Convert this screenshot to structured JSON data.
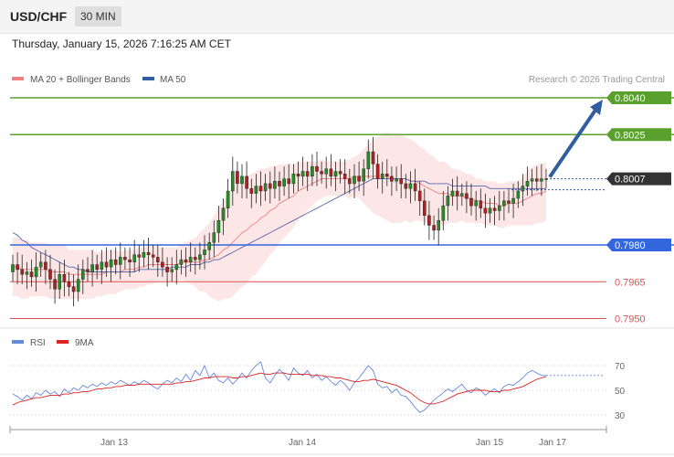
{
  "header": {
    "symbol": "USD/CHF",
    "timeframe": "30 MIN"
  },
  "datetime": "Thursday, January 15, 2026 7:16:25 AM CET",
  "legend": {
    "bollinger": "MA 20 + Bollinger Bands",
    "ma50": "MA 50",
    "watermark": "Research © 2026 Trading Central"
  },
  "rsi_legend": {
    "rsi": "RSI",
    "ma9": "9MA"
  },
  "colors": {
    "resistance": "#5aa02c",
    "support_blue": "#3366dd",
    "support_red": "#e05050",
    "current": "#333333",
    "arrow": "#2f5d9e",
    "ma50": "#5566aa",
    "bollinger": "#f08080",
    "rsi": "#6688dd",
    "rsi_ma": "#dd2222"
  },
  "chart_data": [
    {
      "type": "candlestick",
      "instrument": "USD/CHF",
      "interval": "30 MIN",
      "ylim": [
        0.7942,
        0.8055
      ],
      "x_labels": [
        "Jan 13",
        "Jan 14",
        "Jan 15",
        "Jan 17"
      ],
      "levels": [
        {
          "value": 0.804,
          "label": "0.8040",
          "kind": "resistance"
        },
        {
          "value": 0.8025,
          "label": "0.8025",
          "kind": "resistance"
        },
        {
          "value": 0.8007,
          "label": "0.8007",
          "kind": "current"
        },
        {
          "value": 0.798,
          "label": "0.7980",
          "kind": "support"
        },
        {
          "value": 0.7965,
          "label": "0.7965",
          "kind": "support-minor"
        },
        {
          "value": 0.795,
          "label": "0.7950",
          "kind": "support-minor"
        }
      ],
      "projection": {
        "from": 0.8007,
        "to": 0.804
      },
      "close_series": [
        0.7972,
        0.797,
        0.7968,
        0.7969,
        0.7967,
        0.7971,
        0.7973,
        0.797,
        0.7966,
        0.7962,
        0.7968,
        0.7965,
        0.7963,
        0.7961,
        0.7966,
        0.797,
        0.7969,
        0.7972,
        0.797,
        0.7973,
        0.7971,
        0.7974,
        0.7972,
        0.7975,
        0.7974,
        0.7973,
        0.7976,
        0.7975,
        0.7977,
        0.7976,
        0.7975,
        0.7973,
        0.7971,
        0.7969,
        0.797,
        0.7972,
        0.7974,
        0.7973,
        0.7975,
        0.7974,
        0.7976,
        0.7978,
        0.7981,
        0.7985,
        0.799,
        0.7995,
        0.8002,
        0.801,
        0.8005,
        0.8008,
        0.8003,
        0.8001,
        0.8004,
        0.8002,
        0.8005,
        0.8003,
        0.8006,
        0.8004,
        0.8007,
        0.8005,
        0.8009,
        0.8008,
        0.801,
        0.8008,
        0.8012,
        0.801,
        0.8009,
        0.8011,
        0.8008,
        0.801,
        0.8009,
        0.8007,
        0.8005,
        0.8008,
        0.8006,
        0.8011,
        0.8018,
        0.8013,
        0.8007,
        0.8009,
        0.8008,
        0.8006,
        0.8007,
        0.8005,
        0.8003,
        0.8005,
        0.8002,
        0.7998,
        0.7992,
        0.7988,
        0.7986,
        0.799,
        0.7996,
        0.8,
        0.8002,
        0.8,
        0.8001,
        0.7999,
        0.7996,
        0.7998,
        0.7995,
        0.7993,
        0.7995,
        0.7994,
        0.7996,
        0.7998,
        0.7997,
        0.7999,
        0.8002,
        0.8004,
        0.8006,
        0.8007,
        0.8006,
        0.8007,
        0.8007
      ],
      "ma20_series": [
        0.7971,
        0.7971,
        0.797,
        0.797,
        0.797,
        0.797,
        0.797,
        0.797,
        0.7969,
        0.7969,
        0.7969,
        0.7969,
        0.7968,
        0.7968,
        0.7968,
        0.7968,
        0.7968,
        0.7968,
        0.7968,
        0.7968,
        0.7969,
        0.7969,
        0.7969,
        0.7969,
        0.797,
        0.797,
        0.797,
        0.7971,
        0.7971,
        0.7972,
        0.7972,
        0.7972,
        0.7972,
        0.7972,
        0.7972,
        0.7972,
        0.7973,
        0.7973,
        0.7973,
        0.7973,
        0.7973,
        0.7974,
        0.7974,
        0.7975,
        0.7976,
        0.7978,
        0.7979,
        0.7981,
        0.7983,
        0.7985,
        0.7986,
        0.7988,
        0.7989,
        0.7991,
        0.7992,
        0.7994,
        0.7995,
        0.7997,
        0.7998,
        0.7999,
        0.8,
        0.8002,
        0.8003,
        0.8004,
        0.8005,
        0.8006,
        0.8007,
        0.8007,
        0.8007,
        0.8007,
        0.8007,
        0.8007,
        0.8007,
        0.8008,
        0.8008,
        0.8008,
        0.8008,
        0.8008,
        0.8008,
        0.8008,
        0.8008,
        0.8007,
        0.8007,
        0.8007,
        0.8007,
        0.8006,
        0.8006,
        0.8005,
        0.8004,
        0.8003,
        0.8002,
        0.8001,
        0.8001,
        0.8001,
        0.8,
        0.8,
        0.8,
        0.7999,
        0.7999,
        0.7998,
        0.7998,
        0.7997,
        0.7997,
        0.7997,
        0.7996,
        0.7996,
        0.7997,
        0.7997,
        0.7997,
        0.7998,
        0.7999,
        0.8,
        0.8001,
        0.8001,
        0.8002
      ],
      "ma50_series": [
        0.7985,
        0.7984,
        0.7982,
        0.7981,
        0.7979,
        0.7978,
        0.7977,
        0.7976,
        0.7975,
        0.7974,
        0.7973,
        0.7972,
        0.7971,
        0.7971,
        0.797,
        0.797,
        0.7969,
        0.7969,
        0.7969,
        0.7969,
        0.7969,
        0.7969,
        0.7969,
        0.7969,
        0.7969,
        0.7969,
        0.7969,
        0.797,
        0.797,
        0.797,
        0.797,
        0.797,
        0.797,
        0.797,
        0.7971,
        0.7971,
        0.7971,
        0.7971,
        0.7972,
        0.7972,
        0.7972,
        0.7973,
        0.7973,
        0.7974,
        0.7974,
        0.7975,
        0.7976,
        0.7977,
        0.7978,
        0.7979,
        0.798,
        0.7981,
        0.7982,
        0.7983,
        0.7984,
        0.7985,
        0.7986,
        0.7987,
        0.7988,
        0.7989,
        0.799,
        0.7991,
        0.7992,
        0.7993,
        0.7994,
        0.7995,
        0.7996,
        0.7997,
        0.7998,
        0.7999,
        0.8,
        0.8001,
        0.8002,
        0.8003,
        0.8004,
        0.8005,
        0.8006,
        0.8007,
        0.8007,
        0.8007,
        0.8007,
        0.8007,
        0.8007,
        0.8007,
        0.8007,
        0.8006,
        0.8006,
        0.8006,
        0.8006,
        0.8005,
        0.8005,
        0.8005,
        0.8005,
        0.8005,
        0.8004,
        0.8004,
        0.8004,
        0.8004,
        0.8004,
        0.8004,
        0.8004,
        0.8004,
        0.8003,
        0.8003,
        0.8003,
        0.8003,
        0.8003,
        0.8003,
        0.8003,
        0.8003,
        0.8003,
        0.8003,
        0.8003,
        0.8003,
        0.8003
      ],
      "band_width_series": [
        0.0012,
        0.0012,
        0.0012,
        0.0012,
        0.0011,
        0.0011,
        0.0011,
        0.0011,
        0.0011,
        0.0011,
        0.0011,
        0.0011,
        0.001,
        0.001,
        0.001,
        0.001,
        0.001,
        0.001,
        0.0009,
        0.0009,
        0.0009,
        0.0009,
        0.0009,
        0.0008,
        0.0008,
        0.0008,
        0.0008,
        0.0008,
        0.0008,
        0.0008,
        0.0008,
        0.0007,
        0.0007,
        0.0007,
        0.0007,
        0.0007,
        0.0007,
        0.0008,
        0.0009,
        0.001,
        0.0012,
        0.0013,
        0.0015,
        0.0017,
        0.0019,
        0.002,
        0.0021,
        0.0022,
        0.0022,
        0.0022,
        0.0022,
        0.0021,
        0.0021,
        0.002,
        0.0019,
        0.0018,
        0.0017,
        0.0016,
        0.0015,
        0.0014,
        0.0013,
        0.0012,
        0.0011,
        0.001,
        0.0009,
        0.0008,
        0.0008,
        0.0007,
        0.0007,
        0.0007,
        0.0007,
        0.0007,
        0.0008,
        0.0008,
        0.0009,
        0.0011,
        0.0013,
        0.0015,
        0.0016,
        0.0017,
        0.0018,
        0.0018,
        0.0018,
        0.0018,
        0.0017,
        0.0017,
        0.0016,
        0.0015,
        0.0015,
        0.0014,
        0.0014,
        0.0013,
        0.0013,
        0.0012,
        0.0011,
        0.0011,
        0.001,
        0.001,
        0.001,
        0.0009,
        0.0009,
        0.0009,
        0.0009,
        0.0009,
        0.0009,
        0.0009,
        0.0009,
        0.0009,
        0.0009,
        0.001,
        0.0011,
        0.0012,
        0.0012,
        0.0012,
        0.0012
      ]
    },
    {
      "type": "line",
      "name": "RSI",
      "ylim": [
        25,
        75
      ],
      "ticks": [
        70,
        50,
        30
      ],
      "rsi_series": [
        47,
        45,
        42,
        46,
        43,
        48,
        46,
        50,
        47,
        49,
        45,
        51,
        48,
        52,
        50,
        54,
        52,
        55,
        53,
        56,
        54,
        57,
        55,
        58,
        56,
        54,
        57,
        55,
        58,
        56,
        53,
        51,
        55,
        58,
        56,
        60,
        57,
        63,
        58,
        66,
        62,
        70,
        60,
        64,
        58,
        56,
        60,
        55,
        59,
        64,
        60,
        66,
        70,
        73,
        60,
        56,
        62,
        67,
        63,
        58,
        68,
        64,
        62,
        66,
        60,
        63,
        58,
        61,
        57,
        54,
        58,
        55,
        50,
        56,
        60,
        65,
        70,
        66,
        55,
        52,
        53,
        48,
        51,
        46,
        45,
        41,
        36,
        32,
        34,
        38,
        42,
        45,
        48,
        51,
        49,
        52,
        55,
        50,
        48,
        52,
        50,
        46,
        49,
        51,
        48,
        53,
        55,
        54,
        57,
        60,
        64,
        66,
        64,
        62,
        62
      ],
      "ma9_series": [
        38,
        40,
        41,
        42,
        43,
        44,
        44,
        45,
        46,
        46,
        46,
        47,
        47,
        48,
        48,
        49,
        49,
        50,
        51,
        51,
        52,
        52,
        53,
        53,
        54,
        54,
        54,
        55,
        55,
        55,
        55,
        55,
        55,
        55,
        55,
        56,
        56,
        57,
        57,
        58,
        59,
        60,
        60,
        61,
        61,
        61,
        61,
        60,
        60,
        61,
        61,
        62,
        63,
        64,
        63,
        63,
        64,
        64,
        64,
        63,
        63,
        63,
        63,
        63,
        62,
        62,
        62,
        61,
        61,
        60,
        60,
        59,
        58,
        57,
        57,
        58,
        58,
        59,
        58,
        57,
        56,
        55,
        54,
        52,
        50,
        48,
        45,
        42,
        40,
        39,
        39,
        40,
        41,
        43,
        45,
        47,
        48,
        49,
        50,
        50,
        50,
        50,
        49,
        49,
        49,
        50,
        50,
        51,
        52,
        53,
        55,
        57,
        59,
        60,
        61
      ]
    }
  ]
}
